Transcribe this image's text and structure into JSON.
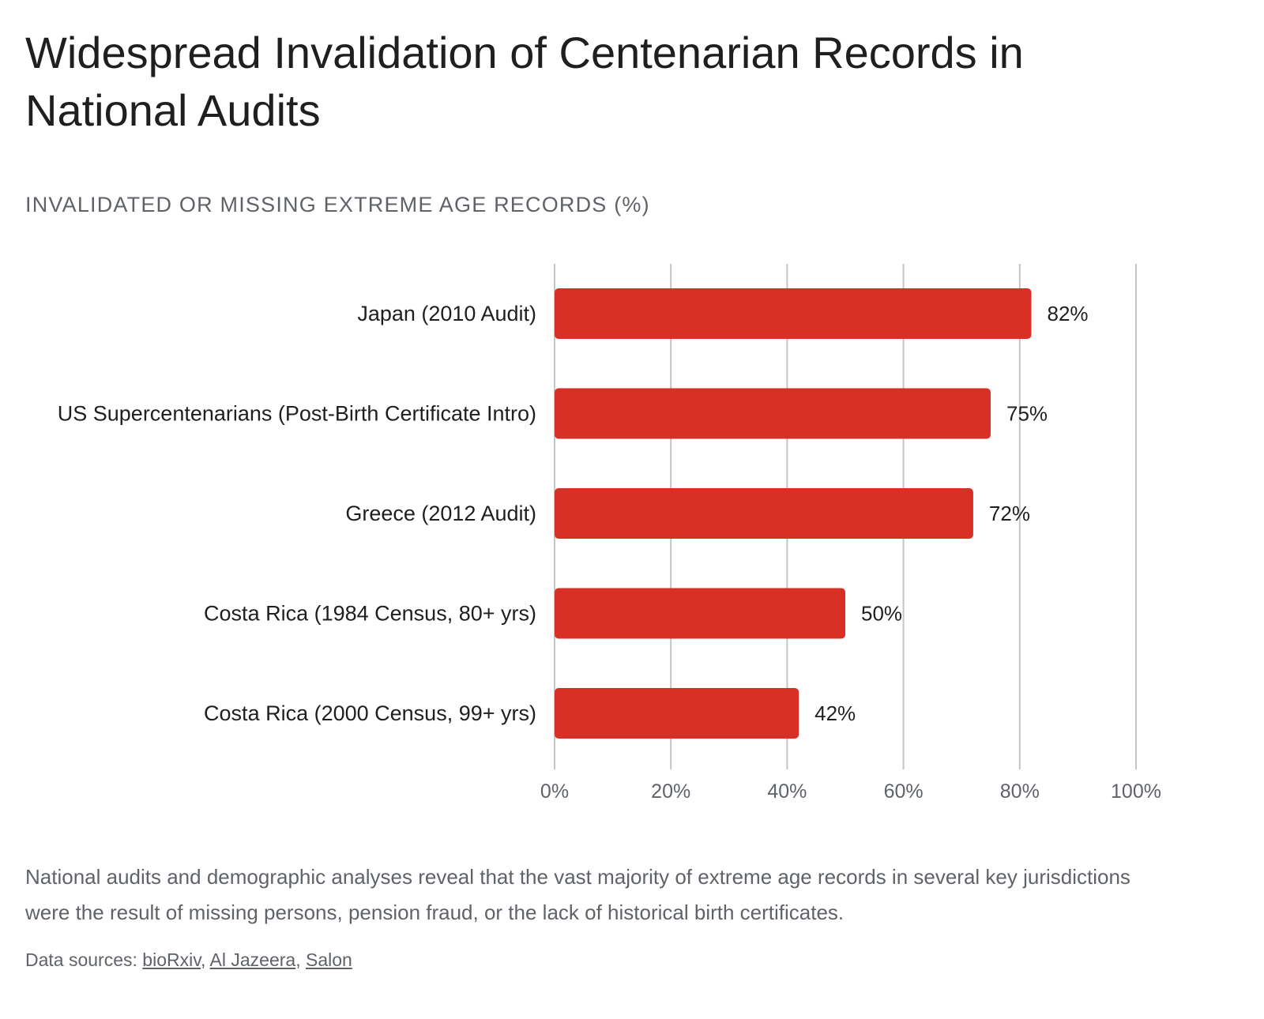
{
  "header": {
    "title": "Widespread Invalidation of Centenarian Records in National Audits",
    "subtitle": "INVALIDATED OR MISSING EXTREME AGE RECORDS (%)"
  },
  "chart_data": {
    "type": "bar",
    "orientation": "horizontal",
    "categories": [
      "Japan (2010 Audit)",
      "US Supercentenarians (Post-Birth Certificate Intro)",
      "Greece (2012 Audit)",
      "Costa Rica (1984 Census, 80+ yrs)",
      "Costa Rica (2000 Census, 99+ yrs)"
    ],
    "values": [
      82,
      75,
      72,
      50,
      42
    ],
    "data_labels": [
      "82%",
      "75%",
      "72%",
      "50%",
      "42%"
    ],
    "xlim": [
      0,
      100
    ],
    "x_ticks": [
      "0%",
      "20%",
      "40%",
      "60%",
      "80%",
      "100%"
    ],
    "grid": true,
    "bar_color": "#d93025"
  },
  "footer": {
    "caption": "National audits and demographic analyses reveal that the vast majority of extreme age records in several key jurisdictions were the result of missing persons, pension fraud, or the lack of historical birth certificates.",
    "sources_label": "Data sources: ",
    "sources": [
      "bioRxiv",
      "Al Jazeera",
      "Salon"
    ]
  }
}
